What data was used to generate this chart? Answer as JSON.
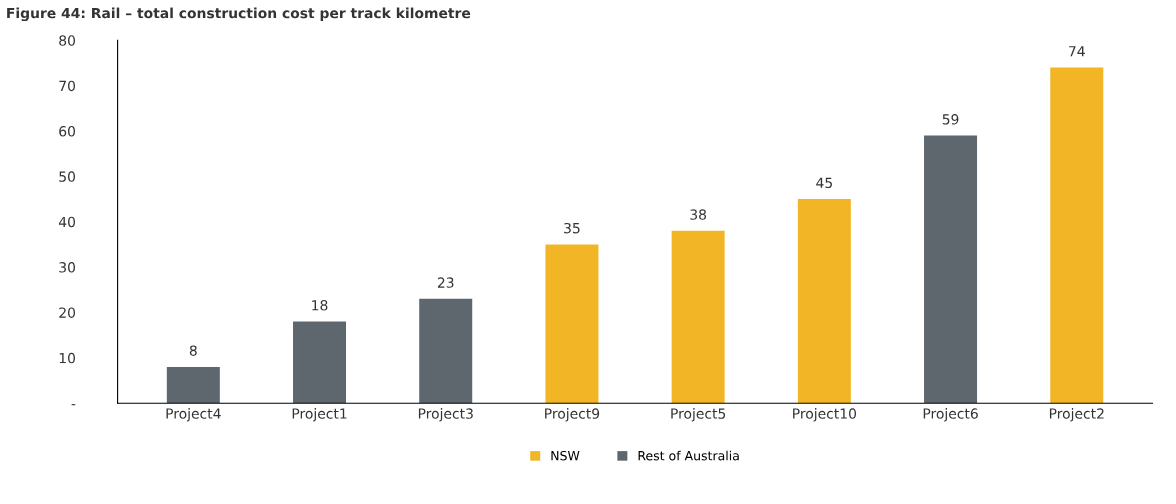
{
  "chart_data": {
    "type": "bar",
    "title": "Figure 44: Rail – total construction cost per track kilometre",
    "categories": [
      "Project4",
      "Project1",
      "Project3",
      "Project9",
      "Project5",
      "Project10",
      "Project6",
      "Project2"
    ],
    "series": [
      {
        "name": "NSW",
        "color": "#f2b526",
        "values": [
          null,
          null,
          null,
          35,
          38,
          45,
          null,
          74
        ]
      },
      {
        "name": "Rest of Australia",
        "color": "#5e666e",
        "values": [
          8,
          18,
          23,
          null,
          null,
          null,
          59,
          null
        ]
      }
    ],
    "ylim": [
      0,
      80
    ],
    "yticks": [
      {
        "value": 0,
        "label": "-"
      },
      10,
      20,
      30,
      40,
      50,
      60,
      70,
      80
    ],
    "data_labels": true,
    "grid": false,
    "legend": "bottom"
  }
}
